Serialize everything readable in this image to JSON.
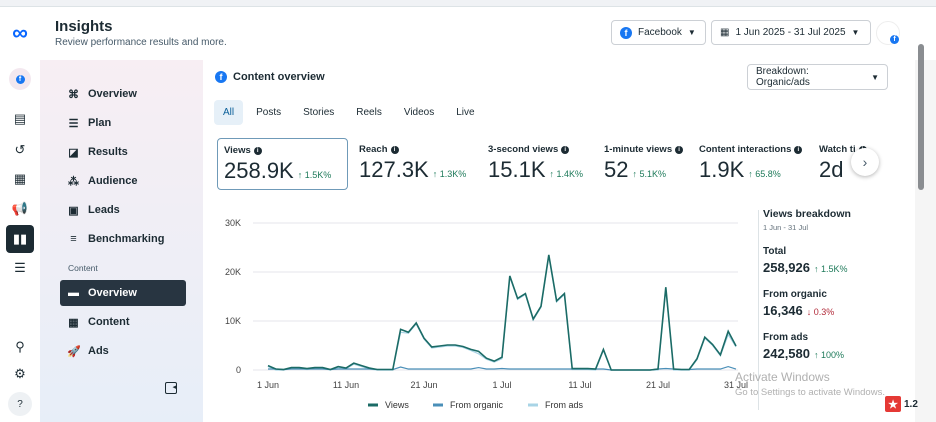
{
  "header": {
    "title": "Insights",
    "subtitle": "Review performance results and more.",
    "platform": "Facebook",
    "date_range": "1 Jun 2025 - 31 Jul 2025"
  },
  "sidebar": {
    "items": [
      {
        "label": "Overview",
        "icon": "overview-icon"
      },
      {
        "label": "Plan",
        "icon": "list-icon"
      },
      {
        "label": "Results",
        "icon": "chart-icon"
      },
      {
        "label": "Audience",
        "icon": "people-icon"
      },
      {
        "label": "Leads",
        "icon": "id-card-icon"
      },
      {
        "label": "Benchmarking",
        "icon": "benchmark-icon"
      }
    ],
    "section_label": "Content",
    "content_items": [
      {
        "label": "Overview",
        "icon": "card-icon",
        "selected": true
      },
      {
        "label": "Content",
        "icon": "table-icon"
      },
      {
        "label": "Ads",
        "icon": "rocket-icon"
      }
    ]
  },
  "main": {
    "section_title": "Content overview",
    "breakdown": "Breakdown: Organic/ads",
    "tabs": [
      "All",
      "Posts",
      "Stories",
      "Reels",
      "Videos",
      "Live"
    ],
    "metrics": [
      {
        "label": "Views",
        "value": "258.9K",
        "delta": "↑ 1.5K%"
      },
      {
        "label": "Reach",
        "value": "127.3K",
        "delta": "↑ 1.3K%"
      },
      {
        "label": "3-second views",
        "value": "15.1K",
        "delta": "↑ 1.4K%"
      },
      {
        "label": "1-minute views",
        "value": "52",
        "delta": "↑ 5.1K%"
      },
      {
        "label": "Content interactions",
        "value": "1.9K",
        "delta": "↑ 65.8%"
      },
      {
        "label": "Watch ti",
        "value": "2d",
        "delta": ""
      }
    ],
    "breakdown_panel": {
      "title": "Views breakdown",
      "date": "1 Jun - 31 Jul",
      "total_label": "Total",
      "total": "258,926",
      "total_delta": "↑ 1.5K%",
      "organic_label": "From organic",
      "organic": "16,346",
      "organic_delta": "↓ 0.3%",
      "ads_label": "From ads",
      "ads": "242,580",
      "ads_delta": "↑ 100%"
    }
  },
  "watermark": {
    "line1": "Activate Windows",
    "line2": "Go to Settings to activate Windows."
  },
  "badge": "1.2",
  "colors": {
    "views": "#1b6b66",
    "organic": "#4a8fb8",
    "ads": "#a8d4e6",
    "accent": "#1877f2"
  },
  "chart_data": {
    "type": "line",
    "x_start": "1 Jun",
    "x_end": "31 Jul",
    "xticks": [
      "1 Jun",
      "11 Jun",
      "21 Jun",
      "1 Jul",
      "11 Jul",
      "21 Jul",
      "31 Jul"
    ],
    "yticks": [
      "0",
      "10K",
      "20K",
      "30K"
    ],
    "ylim": [
      0,
      30000
    ],
    "grid": true,
    "legend": "bottom",
    "series": [
      {
        "name": "Views",
        "values": [
          900,
          200,
          100,
          500,
          500,
          300,
          500,
          500,
          100,
          700,
          400,
          1400,
          900,
          400,
          100,
          100,
          100,
          8300,
          7700,
          9600,
          6500,
          4700,
          4900,
          5100,
          5100,
          4800,
          4200,
          3800,
          2400,
          1800,
          2600,
          19200,
          14600,
          15600,
          10400,
          13000,
          23500,
          14100,
          15600,
          300,
          300,
          300,
          200,
          4200,
          0,
          0,
          0,
          0,
          0,
          0,
          200,
          16900,
          200,
          100,
          100,
          2300,
          6700,
          5200,
          3100,
          7900,
          4900
        ]
      },
      {
        "name": "From organic",
        "values": [
          200,
          200,
          100,
          200,
          200,
          200,
          200,
          200,
          100,
          200,
          200,
          200,
          200,
          200,
          100,
          100,
          100,
          600,
          200,
          200,
          200,
          200,
          200,
          200,
          200,
          200,
          200,
          500,
          200,
          200,
          300,
          200,
          200,
          200,
          200,
          200,
          200,
          200,
          200,
          200,
          200,
          200,
          200,
          200,
          0,
          0,
          0,
          0,
          0,
          0,
          200,
          300,
          200,
          100,
          100,
          200,
          200,
          200,
          200,
          700,
          200
        ]
      },
      {
        "name": "From ads",
        "values": [
          700,
          0,
          0,
          300,
          300,
          100,
          300,
          300,
          0,
          500,
          200,
          1200,
          700,
          200,
          0,
          0,
          0,
          7700,
          7500,
          9400,
          6300,
          4500,
          4700,
          4900,
          4900,
          4600,
          4000,
          3300,
          2200,
          1600,
          2300,
          19000,
          14400,
          15400,
          10200,
          12800,
          23300,
          13900,
          15400,
          100,
          100,
          100,
          0,
          4000,
          0,
          0,
          0,
          0,
          0,
          0,
          0,
          16600,
          0,
          0,
          0,
          2100,
          6500,
          5000,
          2900,
          7200,
          4700
        ]
      }
    ]
  }
}
